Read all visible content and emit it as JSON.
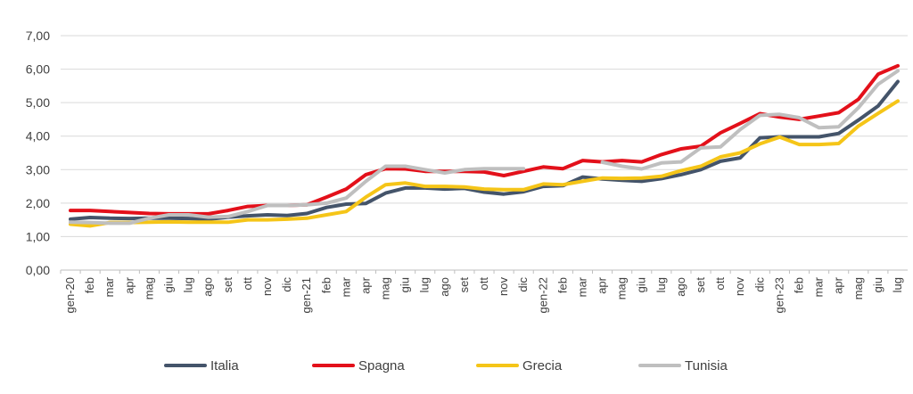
{
  "chart_data": {
    "type": "line",
    "title": "",
    "xlabel": "",
    "ylabel": "",
    "ylim": [
      0,
      7
    ],
    "yticks": [
      "0,00",
      "1,00",
      "2,00",
      "3,00",
      "4,00",
      "5,00",
      "6,00",
      "7,00"
    ],
    "grid": true,
    "legend_position": "bottom",
    "categories": [
      "gen-20",
      "feb",
      "mar",
      "apr",
      "mag",
      "giu",
      "lug",
      "ago",
      "set",
      "ott",
      "nov",
      "dic",
      "gen-21",
      "feb",
      "mar",
      "apr",
      "mag",
      "giu",
      "lug",
      "ago",
      "set",
      "ott",
      "nov",
      "dic",
      "gen-22",
      "feb",
      "mar",
      "apr",
      "mag",
      "giu",
      "lug",
      "ago",
      "set",
      "ott",
      "nov",
      "dic",
      "gen-23",
      "feb",
      "mar",
      "apr",
      "mag",
      "giu",
      "lug"
    ],
    "series": [
      {
        "name": "Italia",
        "color": "#44546A",
        "values": [
          1.52,
          1.57,
          1.55,
          1.54,
          1.55,
          1.55,
          1.54,
          1.52,
          1.58,
          1.62,
          1.65,
          1.63,
          1.69,
          1.87,
          1.97,
          1.99,
          2.3,
          2.45,
          2.45,
          2.42,
          2.44,
          2.33,
          2.27,
          2.34,
          2.5,
          2.52,
          2.78,
          2.72,
          2.68,
          2.65,
          2.73,
          2.85,
          3.0,
          3.25,
          3.35,
          3.95,
          3.98,
          3.98,
          3.98,
          4.08,
          4.48,
          4.9,
          5.63
        ]
      },
      {
        "name": "Spagna",
        "color": "#E3101A",
        "values": [
          1.78,
          1.78,
          1.75,
          1.72,
          1.69,
          1.68,
          1.68,
          1.68,
          1.78,
          1.9,
          1.93,
          1.93,
          1.95,
          2.18,
          2.42,
          2.85,
          3.03,
          3.02,
          2.95,
          2.95,
          2.95,
          2.93,
          2.82,
          2.95,
          3.08,
          3.03,
          3.27,
          3.23,
          3.27,
          3.23,
          3.45,
          3.62,
          3.7,
          4.1,
          4.38,
          4.67,
          4.57,
          4.5,
          4.6,
          4.7,
          5.1,
          5.85,
          6.1
        ]
      },
      {
        "name": "Grecia",
        "color": "#F5C518",
        "values": [
          1.37,
          1.32,
          1.42,
          1.42,
          1.43,
          1.44,
          1.43,
          1.43,
          1.43,
          1.5,
          1.5,
          1.52,
          1.55,
          1.65,
          1.75,
          2.18,
          2.55,
          2.6,
          2.5,
          2.5,
          2.48,
          2.42,
          2.4,
          2.4,
          2.57,
          2.55,
          2.65,
          2.75,
          2.74,
          2.75,
          2.8,
          2.97,
          3.1,
          3.38,
          3.5,
          3.77,
          3.97,
          3.75,
          3.75,
          3.78,
          4.3,
          4.68,
          5.05
        ]
      },
      {
        "name": "Tunisia",
        "color": "#BFBFBF",
        "values": [
          1.43,
          1.42,
          1.4,
          1.4,
          1.55,
          1.65,
          1.65,
          1.58,
          1.6,
          1.75,
          1.93,
          1.93,
          1.95,
          2.0,
          2.15,
          2.65,
          3.1,
          3.1,
          3.0,
          2.9,
          3.0,
          3.03,
          3.03,
          3.03,
          null,
          null,
          null,
          3.22,
          3.1,
          3.02,
          3.2,
          3.23,
          3.65,
          3.68,
          4.2,
          4.62,
          4.65,
          4.55,
          4.25,
          4.28,
          4.85,
          5.55,
          5.95
        ]
      }
    ]
  }
}
